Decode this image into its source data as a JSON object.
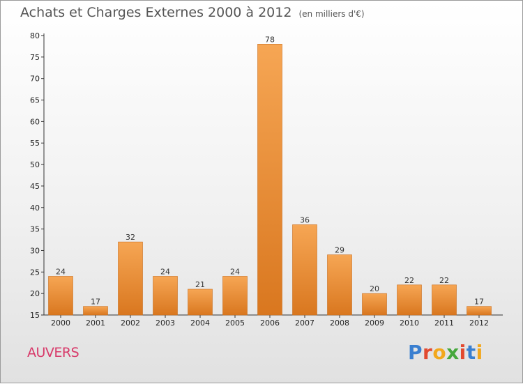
{
  "title": "Achats et Charges Externes 2000 à 2012",
  "subtitle": "(en milliers d'€)",
  "place": "AUVERS",
  "logo": {
    "letters": [
      "P",
      "r",
      "o",
      "x",
      "i",
      "t",
      "i"
    ],
    "colors": [
      "#3a7fd0",
      "#e2492f",
      "#f2a81d",
      "#46a83c",
      "#e2492f",
      "#3a7fd0",
      "#f2a81d"
    ]
  },
  "colors": {
    "bar": "#f0a050",
    "bar_dark": "#d97a2a",
    "title": "#555555",
    "place": "#d83a6a"
  },
  "chart_data": {
    "type": "bar",
    "title": "Achats et Charges Externes 2000 à 2012",
    "subtitle": "(en milliers d'€)",
    "xlabel": "",
    "ylabel": "",
    "categories": [
      "2000",
      "2001",
      "2002",
      "2003",
      "2004",
      "2005",
      "2006",
      "2007",
      "2008",
      "2009",
      "2010",
      "2011",
      "2012"
    ],
    "values": [
      24,
      17,
      32,
      24,
      21,
      24,
      78,
      36,
      29,
      20,
      22,
      22,
      17
    ],
    "ylim": [
      15,
      80
    ],
    "yticks": [
      15,
      20,
      25,
      30,
      35,
      40,
      45,
      50,
      55,
      60,
      65,
      70,
      75,
      80
    ],
    "grid": false
  }
}
